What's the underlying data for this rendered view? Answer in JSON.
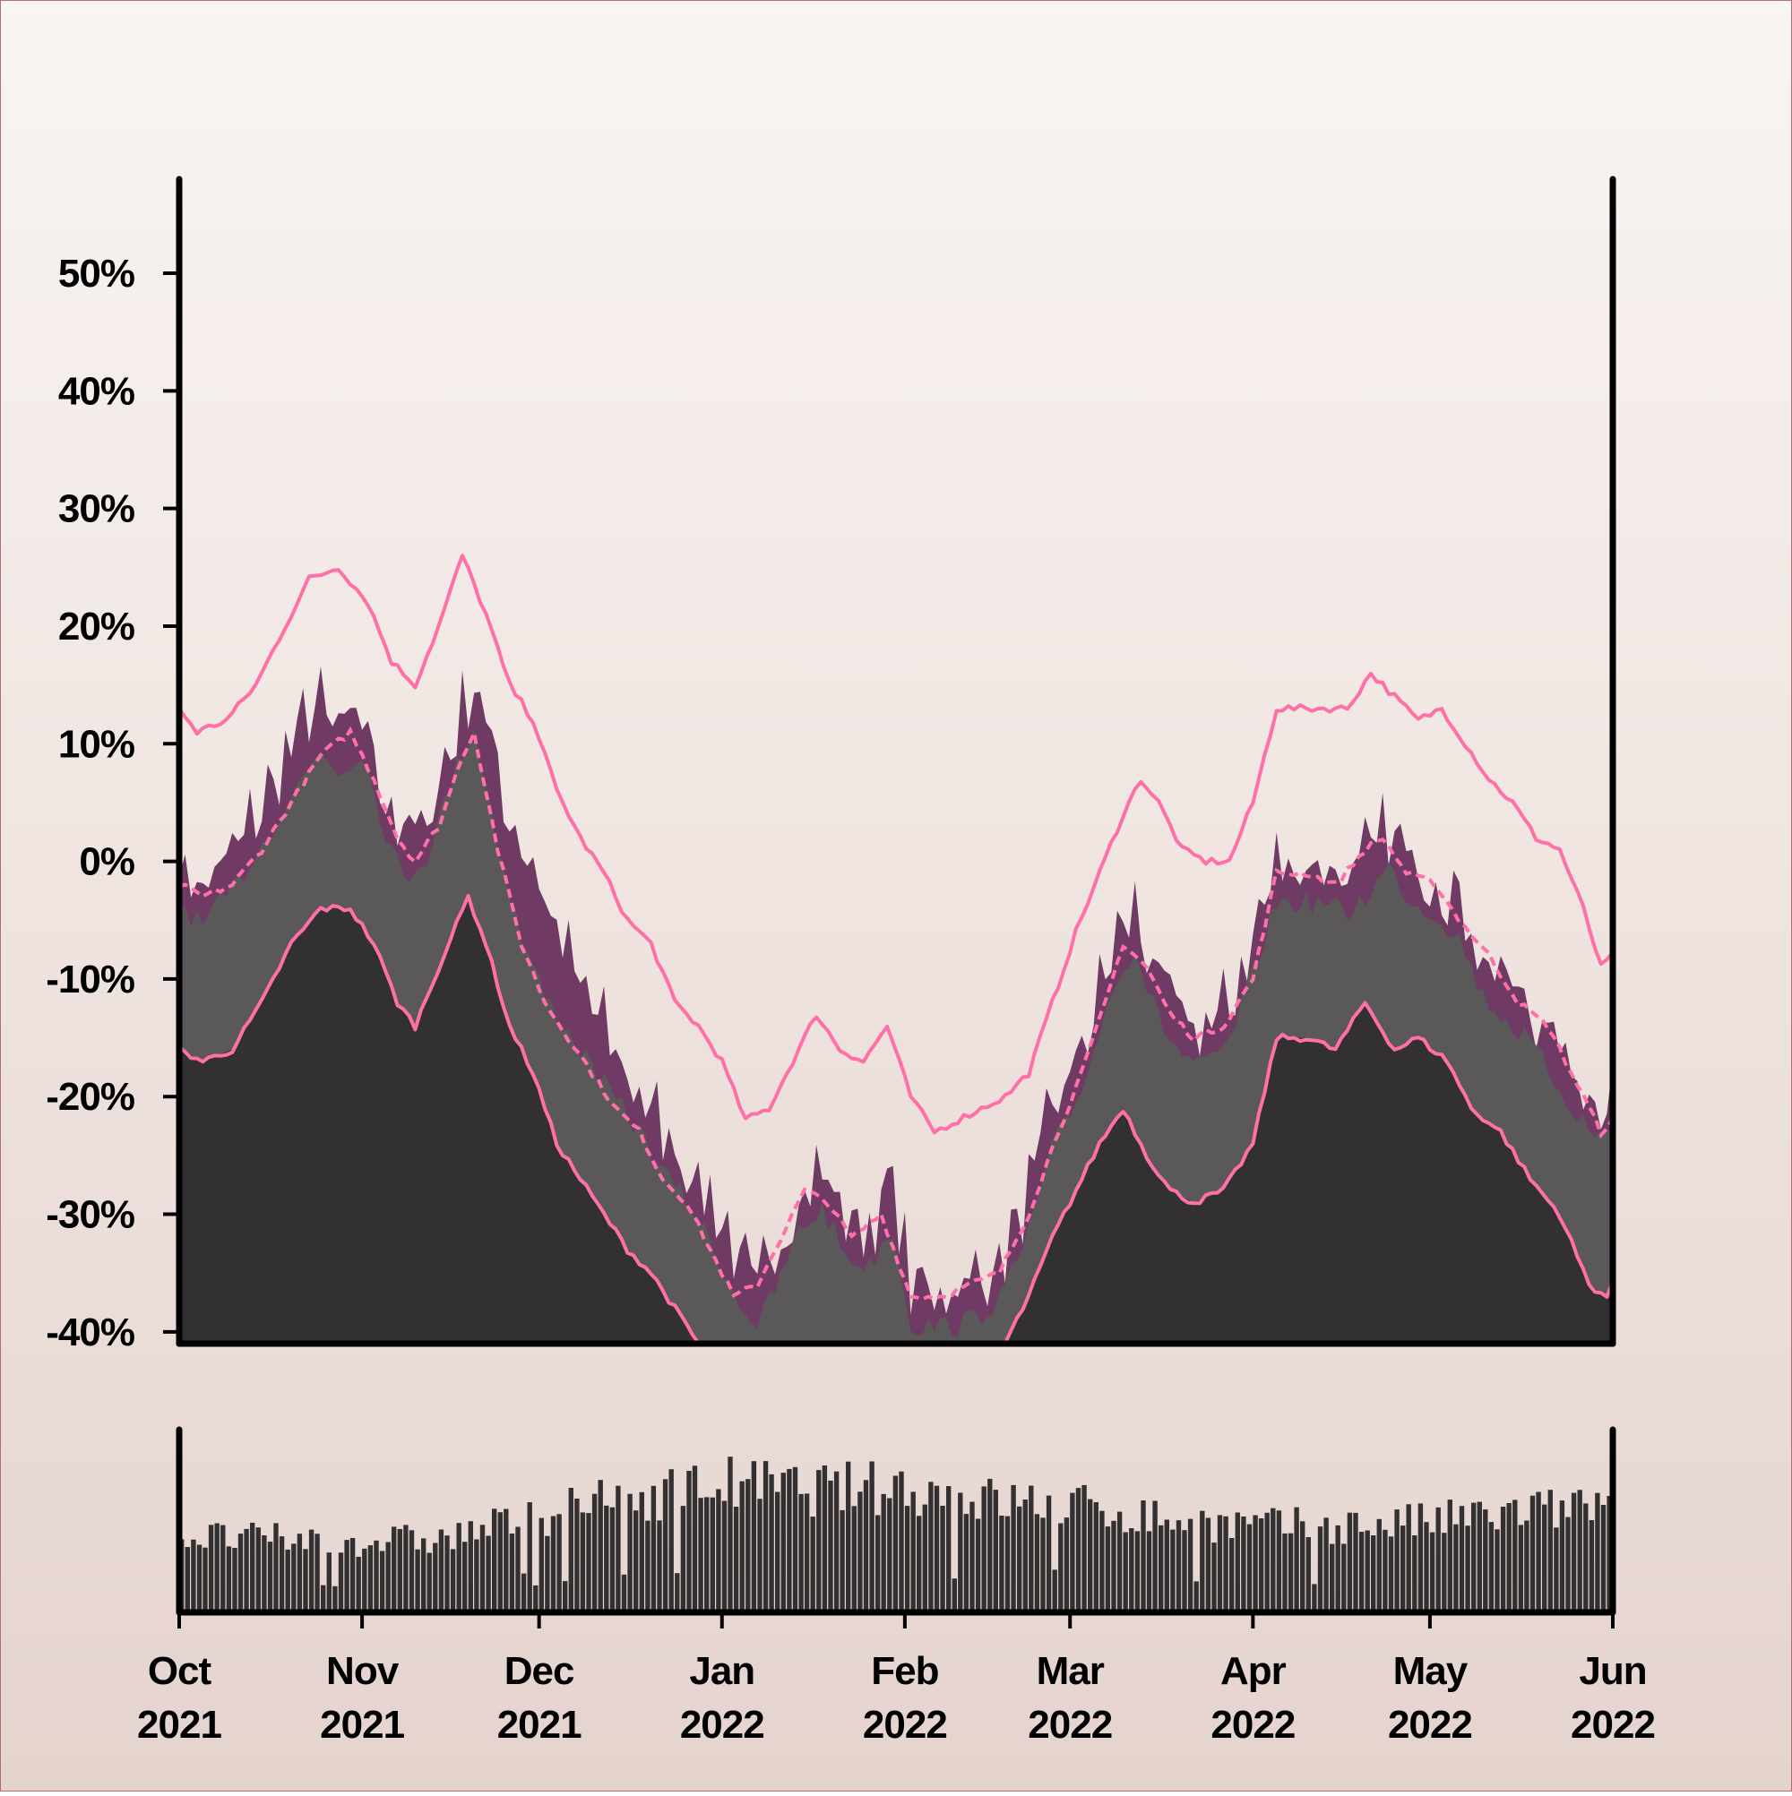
{
  "chart_data": {
    "type": "area",
    "title": "",
    "xlabel": "",
    "ylabel": "",
    "x_axis": {
      "type": "date",
      "range": [
        "2021-10-01",
        "2022-06-01"
      ],
      "ticks": [
        {
          "date": "2021-10-01",
          "month": "Oct",
          "year": "2021"
        },
        {
          "date": "2021-11-01",
          "month": "Nov",
          "year": "2021"
        },
        {
          "date": "2021-12-01",
          "month": "Dec",
          "year": "2021"
        },
        {
          "date": "2022-01-01",
          "month": "Jan",
          "year": "2022"
        },
        {
          "date": "2022-02-01",
          "month": "Feb",
          "year": "2022"
        },
        {
          "date": "2022-03-01",
          "month": "Mar",
          "year": "2022"
        },
        {
          "date": "2022-04-01",
          "month": "Apr",
          "year": "2022"
        },
        {
          "date": "2022-05-01",
          "month": "May",
          "year": "2022"
        },
        {
          "date": "2022-06-01",
          "month": "Jun",
          "year": "2022"
        }
      ]
    },
    "y_axis": {
      "ylim": [
        -41,
        58
      ],
      "unit": "%",
      "ticks": [
        -40,
        -30,
        -20,
        -10,
        0,
        10,
        20,
        30,
        40,
        50
      ],
      "tick_labels": [
        "-40%",
        "-30%",
        "-20%",
        "-10%",
        "0%",
        "10%",
        "20%",
        "30%",
        "40%",
        "50%"
      ]
    },
    "grid": false,
    "legend": "none",
    "series": [
      {
        "role": "daily-value-area",
        "color": "#6f3a63",
        "points": [
          [
            "2021-10-01",
            -1
          ],
          [
            "2021-10-05",
            -3
          ],
          [
            "2021-10-10",
            0
          ],
          [
            "2021-10-15",
            4
          ],
          [
            "2021-10-20",
            9
          ],
          [
            "2021-10-24",
            13
          ],
          [
            "2021-10-28",
            10
          ],
          [
            "2021-11-01",
            12
          ],
          [
            "2021-11-05",
            5
          ],
          [
            "2021-11-08",
            1
          ],
          [
            "2021-11-12",
            3
          ],
          [
            "2021-11-16",
            9
          ],
          [
            "2021-11-20",
            15
          ],
          [
            "2021-11-23",
            9
          ],
          [
            "2021-11-26",
            3
          ],
          [
            "2021-11-30",
            -1
          ],
          [
            "2021-12-04",
            -7
          ],
          [
            "2021-12-08",
            -11
          ],
          [
            "2021-12-12",
            -15
          ],
          [
            "2021-12-16",
            -19
          ],
          [
            "2021-12-20",
            -22
          ],
          [
            "2021-12-24",
            -25
          ],
          [
            "2021-12-28",
            -28
          ],
          [
            "2022-01-01",
            -31
          ],
          [
            "2022-01-04",
            -35
          ],
          [
            "2022-01-07",
            -37
          ],
          [
            "2022-01-10",
            -34
          ],
          [
            "2022-01-14",
            -29
          ],
          [
            "2022-01-18",
            -27
          ],
          [
            "2022-01-22",
            -31
          ],
          [
            "2022-01-26",
            -32
          ],
          [
            "2022-01-30",
            -28
          ],
          [
            "2022-02-02",
            -37
          ],
          [
            "2022-02-06",
            -37
          ],
          [
            "2022-02-10",
            -37
          ],
          [
            "2022-02-14",
            -36
          ],
          [
            "2022-02-18",
            -34
          ],
          [
            "2022-02-22",
            -29
          ],
          [
            "2022-02-26",
            -22
          ],
          [
            "2022-03-02",
            -18
          ],
          [
            "2022-03-06",
            -12
          ],
          [
            "2022-03-09",
            -7
          ],
          [
            "2022-03-12",
            -5
          ],
          [
            "2022-03-16",
            -11
          ],
          [
            "2022-03-20",
            -14
          ],
          [
            "2022-03-24",
            -15
          ],
          [
            "2022-03-28",
            -13
          ],
          [
            "2022-04-01",
            -7
          ],
          [
            "2022-04-05",
            -1
          ],
          [
            "2022-04-09",
            -1
          ],
          [
            "2022-04-13",
            -1
          ],
          [
            "2022-04-17",
            -2
          ],
          [
            "2022-04-21",
            0
          ],
          [
            "2022-04-24",
            2
          ],
          [
            "2022-04-28",
            -1
          ],
          [
            "2022-05-02",
            -2
          ],
          [
            "2022-05-06",
            -4
          ],
          [
            "2022-05-10",
            -9
          ],
          [
            "2022-05-14",
            -11
          ],
          [
            "2022-05-18",
            -13
          ],
          [
            "2022-05-22",
            -16
          ],
          [
            "2022-05-26",
            -19
          ],
          [
            "2022-05-29",
            -21
          ],
          [
            "2022-06-01",
            -20
          ]
        ]
      },
      {
        "role": "trend-dashed",
        "color": "#ff6fa8",
        "points": [
          [
            "2021-10-01",
            -2
          ],
          [
            "2021-10-05",
            -3
          ],
          [
            "2021-10-10",
            -2
          ],
          [
            "2021-10-15",
            1
          ],
          [
            "2021-10-20",
            5
          ],
          [
            "2021-10-25",
            9
          ],
          [
            "2021-10-30",
            11
          ],
          [
            "2021-11-03",
            7
          ],
          [
            "2021-11-07",
            2
          ],
          [
            "2021-11-10",
            0
          ],
          [
            "2021-11-14",
            3
          ],
          [
            "2021-11-18",
            9
          ],
          [
            "2021-11-20",
            11
          ],
          [
            "2021-11-24",
            1
          ],
          [
            "2021-11-28",
            -7
          ],
          [
            "2021-12-02",
            -12
          ],
          [
            "2021-12-06",
            -15
          ],
          [
            "2021-12-10",
            -18
          ],
          [
            "2021-12-14",
            -21
          ],
          [
            "2021-12-18",
            -23
          ],
          [
            "2021-12-22",
            -27
          ],
          [
            "2021-12-26",
            -29
          ],
          [
            "2021-12-30",
            -33
          ],
          [
            "2022-01-03",
            -37
          ],
          [
            "2022-01-07",
            -36
          ],
          [
            "2022-01-11",
            -32
          ],
          [
            "2022-01-15",
            -28
          ],
          [
            "2022-01-19",
            -29
          ],
          [
            "2022-01-23",
            -32
          ],
          [
            "2022-01-28",
            -30
          ],
          [
            "2022-02-02",
            -37
          ],
          [
            "2022-02-07",
            -37
          ],
          [
            "2022-02-12",
            -36
          ],
          [
            "2022-02-17",
            -35
          ],
          [
            "2022-02-22",
            -30
          ],
          [
            "2022-02-27",
            -23
          ],
          [
            "2022-03-03",
            -18
          ],
          [
            "2022-03-07",
            -12
          ],
          [
            "2022-03-10",
            -7
          ],
          [
            "2022-03-14",
            -9
          ],
          [
            "2022-03-18",
            -13
          ],
          [
            "2022-03-22",
            -15
          ],
          [
            "2022-03-27",
            -14
          ],
          [
            "2022-04-01",
            -10
          ],
          [
            "2022-04-05",
            -1
          ],
          [
            "2022-04-10",
            -1
          ],
          [
            "2022-04-15",
            -2
          ],
          [
            "2022-04-20",
            1
          ],
          [
            "2022-04-23",
            2
          ],
          [
            "2022-04-27",
            -1
          ],
          [
            "2022-05-02",
            -2
          ],
          [
            "2022-05-06",
            -5
          ],
          [
            "2022-05-11",
            -8
          ],
          [
            "2022-05-16",
            -12
          ],
          [
            "2022-05-21",
            -14
          ],
          [
            "2022-05-26",
            -19
          ],
          [
            "2022-05-30",
            -23
          ],
          [
            "2022-06-01",
            -22
          ]
        ]
      },
      {
        "role": "upper-band",
        "color": "#ff6fa8",
        "points": [
          [
            "2021-10-01",
            13
          ],
          [
            "2021-10-04",
            11
          ],
          [
            "2021-10-09",
            12
          ],
          [
            "2021-10-14",
            15
          ],
          [
            "2021-10-19",
            20
          ],
          [
            "2021-10-23",
            24
          ],
          [
            "2021-10-28",
            25
          ],
          [
            "2021-11-02",
            22
          ],
          [
            "2021-11-06",
            17
          ],
          [
            "2021-11-10",
            15
          ],
          [
            "2021-11-14",
            20
          ],
          [
            "2021-11-18",
            26
          ],
          [
            "2021-11-22",
            21
          ],
          [
            "2021-11-26",
            15
          ],
          [
            "2021-11-30",
            12
          ],
          [
            "2021-12-04",
            6
          ],
          [
            "2021-12-08",
            2
          ],
          [
            "2021-12-12",
            -1
          ],
          [
            "2021-12-16",
            -5
          ],
          [
            "2021-12-20",
            -7
          ],
          [
            "2021-12-24",
            -12
          ],
          [
            "2021-12-28",
            -14
          ],
          [
            "2022-01-01",
            -17
          ],
          [
            "2022-01-05",
            -22
          ],
          [
            "2022-01-09",
            -21
          ],
          [
            "2022-01-13",
            -17
          ],
          [
            "2022-01-17",
            -13
          ],
          [
            "2022-01-21",
            -16
          ],
          [
            "2022-01-25",
            -17
          ],
          [
            "2022-01-29",
            -14
          ],
          [
            "2022-02-02",
            -20
          ],
          [
            "2022-02-06",
            -23
          ],
          [
            "2022-02-10",
            -22
          ],
          [
            "2022-02-14",
            -21
          ],
          [
            "2022-02-18",
            -20
          ],
          [
            "2022-02-22",
            -18
          ],
          [
            "2022-02-26",
            -12
          ],
          [
            "2022-03-02",
            -6
          ],
          [
            "2022-03-06",
            -1
          ],
          [
            "2022-03-10",
            4
          ],
          [
            "2022-03-13",
            7
          ],
          [
            "2022-03-16",
            5
          ],
          [
            "2022-03-20",
            1
          ],
          [
            "2022-03-24",
            0
          ],
          [
            "2022-03-28",
            0
          ],
          [
            "2022-04-01",
            5
          ],
          [
            "2022-04-05",
            13
          ],
          [
            "2022-04-09",
            13
          ],
          [
            "2022-04-13",
            13
          ],
          [
            "2022-04-17",
            13
          ],
          [
            "2022-04-21",
            16
          ],
          [
            "2022-04-25",
            14
          ],
          [
            "2022-04-29",
            12
          ],
          [
            "2022-05-03",
            13
          ],
          [
            "2022-05-07",
            10
          ],
          [
            "2022-05-11",
            7
          ],
          [
            "2022-05-15",
            5
          ],
          [
            "2022-05-19",
            2
          ],
          [
            "2022-05-23",
            1
          ],
          [
            "2022-05-27",
            -4
          ],
          [
            "2022-05-30",
            -9
          ],
          [
            "2022-06-01",
            -8
          ]
        ]
      },
      {
        "role": "lower-band",
        "color": "#ff6fa8",
        "points": [
          [
            "2021-10-01",
            -16
          ],
          [
            "2021-10-05",
            -17
          ],
          [
            "2021-10-10",
            -16
          ],
          [
            "2021-10-15",
            -12
          ],
          [
            "2021-10-20",
            -7
          ],
          [
            "2021-10-25",
            -4
          ],
          [
            "2021-10-30",
            -4
          ],
          [
            "2021-11-03",
            -7
          ],
          [
            "2021-11-07",
            -12
          ],
          [
            "2021-11-10",
            -14
          ],
          [
            "2021-11-14",
            -9
          ],
          [
            "2021-11-19",
            -3
          ],
          [
            "2021-11-22",
            -7
          ],
          [
            "2021-11-26",
            -14
          ],
          [
            "2021-11-30",
            -18
          ],
          [
            "2021-12-04",
            -24
          ],
          [
            "2021-12-08",
            -27
          ],
          [
            "2021-12-12",
            -30
          ],
          [
            "2021-12-16",
            -33
          ],
          [
            "2021-12-20",
            -35
          ],
          [
            "2021-12-24",
            -38
          ],
          [
            "2021-12-28",
            -41
          ]
        ]
      },
      {
        "role": "lower-band",
        "color": "#ff6fa8",
        "points": [
          [
            "2022-02-18",
            -41
          ],
          [
            "2022-02-22",
            -37
          ],
          [
            "2022-02-26",
            -32
          ],
          [
            "2022-03-02",
            -28
          ],
          [
            "2022-03-06",
            -24
          ],
          [
            "2022-03-10",
            -21
          ],
          [
            "2022-03-14",
            -25
          ],
          [
            "2022-03-18",
            -28
          ],
          [
            "2022-03-22",
            -29
          ],
          [
            "2022-03-27",
            -28
          ],
          [
            "2022-04-01",
            -24
          ],
          [
            "2022-04-05",
            -15
          ],
          [
            "2022-04-10",
            -15
          ],
          [
            "2022-04-15",
            -16
          ],
          [
            "2022-04-20",
            -12
          ],
          [
            "2022-04-25",
            -16
          ],
          [
            "2022-04-29",
            -15
          ],
          [
            "2022-05-04",
            -17
          ],
          [
            "2022-05-08",
            -21
          ],
          [
            "2022-05-13",
            -23
          ],
          [
            "2022-05-18",
            -27
          ],
          [
            "2022-05-23",
            -30
          ],
          [
            "2022-05-28",
            -36
          ],
          [
            "2022-05-31",
            -37
          ],
          [
            "2022-06-01",
            -36
          ]
        ]
      }
    ],
    "colors": {
      "background_top": "#f9f5f2",
      "background_bottom": "#e5d3ce",
      "area_dark": "#323031",
      "area_mid": "#5a5859",
      "area_peaks": "#6f3a63",
      "bands": "#ff6fa8",
      "volume_bars": "#323031",
      "axis": "#000000"
    },
    "volume": {
      "type": "bar",
      "color": "#323031",
      "y_axis_labels": "none",
      "envelope": [
        [
          "2021-10-01",
          35
        ],
        [
          "2021-11-01",
          33
        ],
        [
          "2021-11-15",
          34
        ],
        [
          "2021-12-01",
          45
        ],
        [
          "2021-12-15",
          52
        ],
        [
          "2022-01-01",
          60
        ],
        [
          "2022-01-15",
          57
        ],
        [
          "2022-02-01",
          58
        ],
        [
          "2022-02-15",
          52
        ],
        [
          "2022-03-01",
          50
        ],
        [
          "2022-03-15",
          44
        ],
        [
          "2022-04-01",
          40
        ],
        [
          "2022-04-15",
          40
        ],
        [
          "2022-05-01",
          42
        ],
        [
          "2022-05-15",
          46
        ],
        [
          "2022-06-01",
          50
        ]
      ]
    }
  }
}
